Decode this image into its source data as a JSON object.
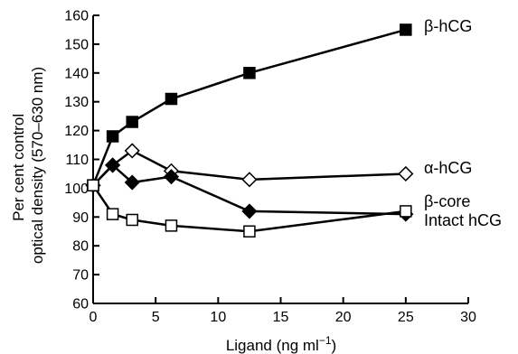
{
  "chart_data": {
    "type": "line",
    "title": "",
    "xlabel": "Ligand (ng ml",
    "xlabel_superscript": "−1",
    "xlabel_close": ")",
    "ylabel_lines": [
      "Per cent control",
      "optical density (570–630 nm)"
    ],
    "xlim": [
      0,
      30
    ],
    "ylim": [
      60,
      160
    ],
    "xticks": [
      0,
      5,
      10,
      15,
      20,
      25,
      30
    ],
    "yticks": [
      60,
      70,
      80,
      90,
      100,
      110,
      120,
      130,
      140,
      150,
      160
    ],
    "grid": false,
    "legend": "direct labels at right end of each line",
    "series": [
      {
        "name": "β-hCG",
        "marker": "square-filled",
        "x": [
          0,
          1.5625,
          3.125,
          6.25,
          12.5,
          25
        ],
        "y": [
          101,
          118,
          123,
          131,
          140,
          155
        ]
      },
      {
        "name": "α-hCG",
        "marker": "diamond-open",
        "x": [
          0,
          1.5625,
          3.125,
          6.25,
          12.5,
          25
        ],
        "y": [
          101,
          108,
          113,
          106,
          103,
          105
        ]
      },
      {
        "name": "β-core",
        "marker": "diamond-filled",
        "x": [
          0,
          1.5625,
          3.125,
          6.25,
          12.5,
          25
        ],
        "y": [
          101,
          108,
          102,
          104,
          92,
          91
        ]
      },
      {
        "name": "Intact hCG",
        "marker": "square-open",
        "x": [
          0,
          1.5625,
          3.125,
          6.25,
          12.5,
          25
        ],
        "y": [
          101,
          91,
          89,
          87,
          85,
          92
        ]
      }
    ]
  }
}
